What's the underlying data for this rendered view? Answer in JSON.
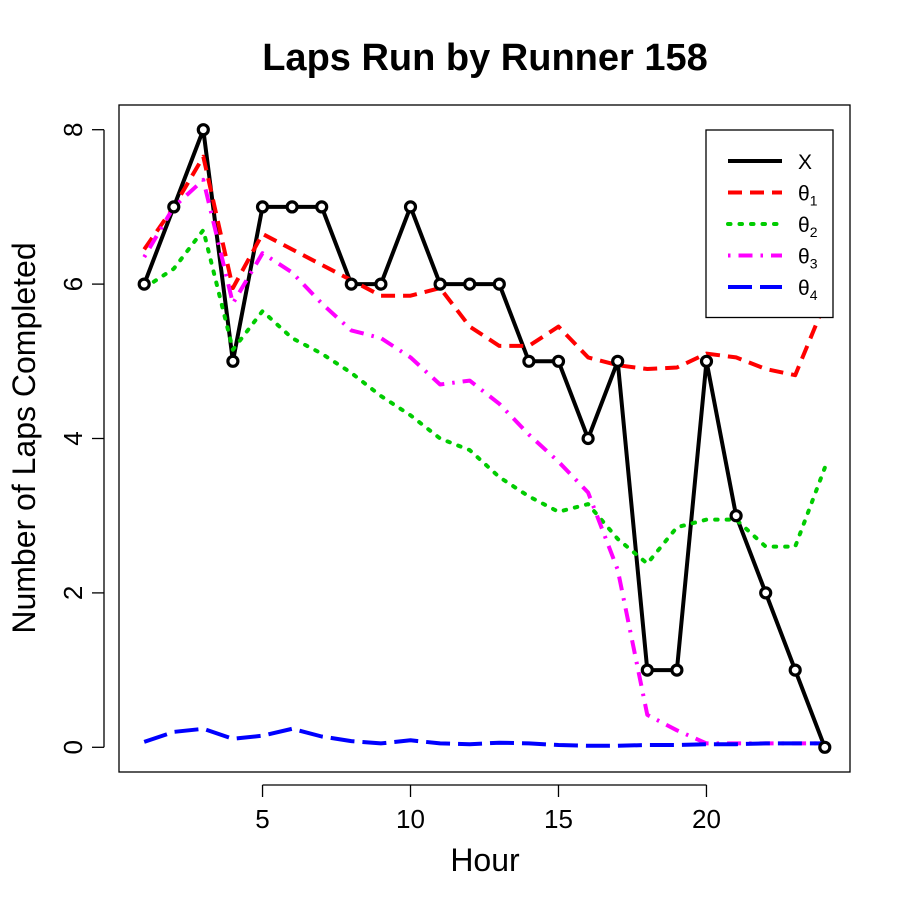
{
  "chart_data": {
    "type": "line",
    "title": "Laps Run by Runner 158",
    "xlabel": "Hour",
    "ylabel": "Number of Laps Completed",
    "xlim": [
      0.15,
      24.85
    ],
    "ylim": [
      -0.32,
      8.32
    ],
    "xticks": [
      5,
      10,
      15,
      20
    ],
    "yticks": [
      0,
      2,
      4,
      6,
      8
    ],
    "grid": false,
    "legend_position": "top-right",
    "x": [
      1,
      2,
      3,
      4,
      5,
      6,
      7,
      8,
      9,
      10,
      11,
      12,
      13,
      14,
      15,
      16,
      17,
      18,
      19,
      20,
      21,
      22,
      23,
      24
    ],
    "series": [
      {
        "name": "X",
        "legend_base": "X",
        "legend_sub": "",
        "color": "#000000",
        "dash": "solid",
        "markers": true,
        "values": [
          6,
          7,
          8,
          5,
          7,
          7,
          7,
          6,
          6,
          7,
          6,
          6,
          6,
          5,
          5,
          4,
          5,
          1,
          1,
          5,
          3,
          2,
          1,
          0
        ]
      },
      {
        "name": "θ1",
        "legend_base": "θ",
        "legend_sub": "1",
        "color": "#ff0000",
        "dash": "dashed",
        "markers": false,
        "values": [
          6.45,
          7.0,
          7.65,
          5.95,
          6.65,
          6.45,
          6.25,
          6.05,
          5.85,
          5.85,
          5.95,
          5.45,
          5.2,
          5.2,
          5.45,
          5.05,
          4.95,
          4.9,
          4.92,
          5.1,
          5.05,
          4.9,
          4.82,
          5.75
        ]
      },
      {
        "name": "θ2",
        "legend_base": "θ",
        "legend_sub": "2",
        "color": "#00cc00",
        "dash": "dotted",
        "markers": false,
        "values": [
          5.95,
          6.2,
          6.7,
          5.15,
          5.65,
          5.3,
          5.1,
          4.85,
          4.55,
          4.3,
          4.0,
          3.85,
          3.5,
          3.25,
          3.05,
          3.15,
          2.7,
          2.38,
          2.85,
          2.95,
          2.95,
          2.6,
          2.6,
          3.62
        ]
      },
      {
        "name": "θ3",
        "legend_base": "θ",
        "legend_sub": "3",
        "color": "#ff00ff",
        "dash": "dotdash",
        "markers": false,
        "values": [
          6.35,
          7.0,
          7.35,
          5.75,
          6.4,
          6.15,
          5.75,
          5.4,
          5.3,
          5.05,
          4.7,
          4.75,
          4.45,
          4.05,
          3.7,
          3.3,
          2.3,
          0.42,
          0.22,
          0.05,
          0.05,
          0.05,
          0.05,
          0.05
        ]
      },
      {
        "name": "θ4",
        "legend_base": "θ",
        "legend_sub": "4",
        "color": "#0000ff",
        "dash": "longdash",
        "markers": false,
        "values": [
          0.07,
          0.2,
          0.24,
          0.11,
          0.15,
          0.24,
          0.14,
          0.08,
          0.05,
          0.09,
          0.05,
          0.04,
          0.06,
          0.05,
          0.03,
          0.02,
          0.02,
          0.03,
          0.03,
          0.04,
          0.04,
          0.05,
          0.05,
          0.05
        ]
      }
    ]
  }
}
